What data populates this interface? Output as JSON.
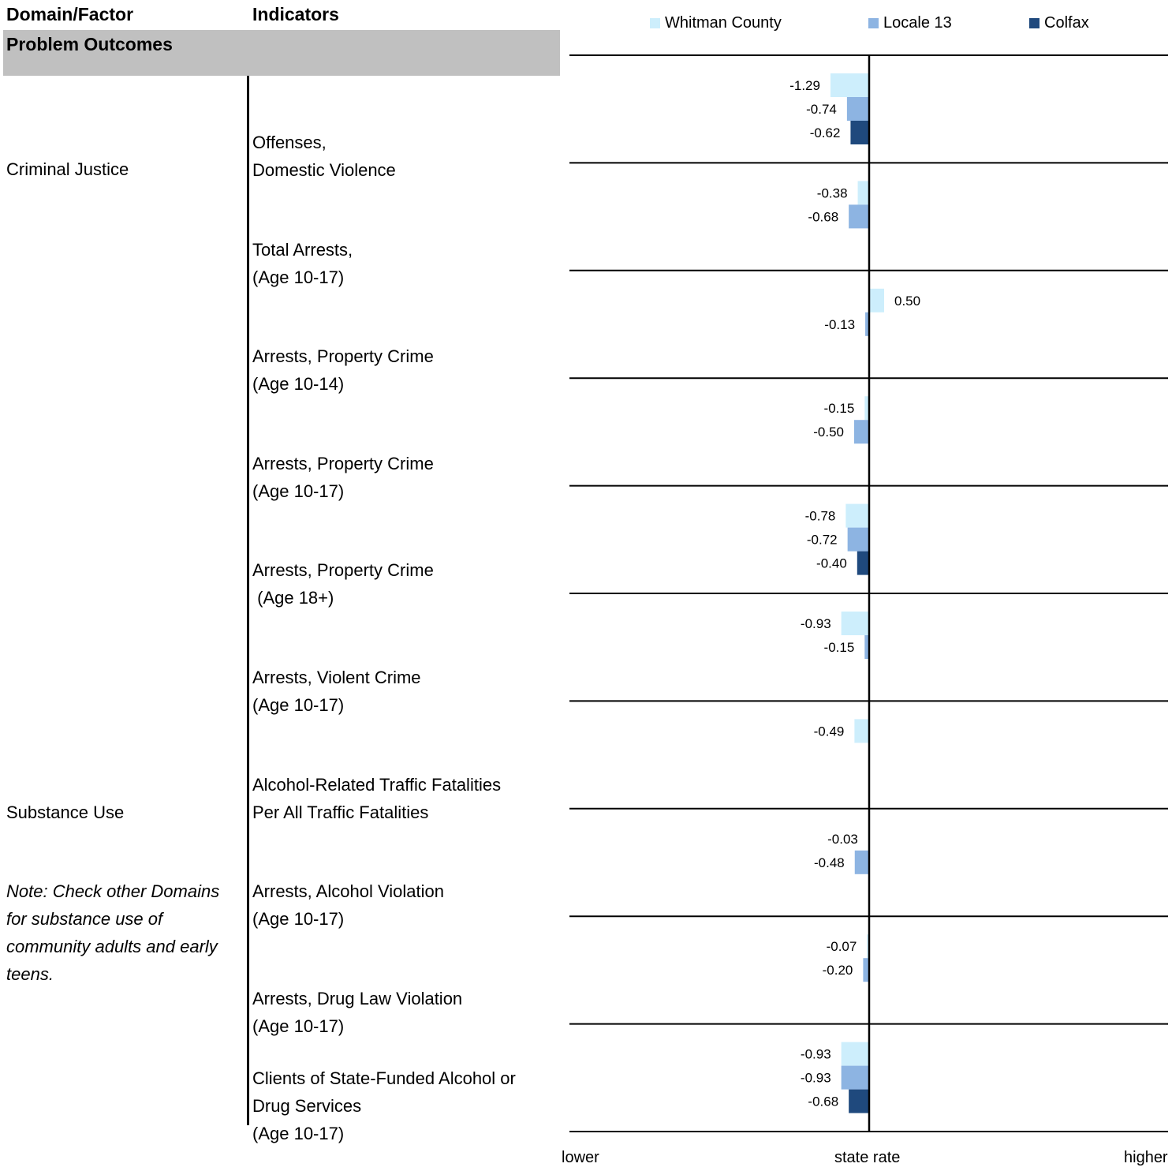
{
  "header": {
    "col1": "Domain/Factor",
    "col2": "Indicators",
    "section": "Problem Outcomes"
  },
  "domains": [
    {
      "name": "Criminal Justice"
    },
    {
      "name": "Substance Use"
    }
  ],
  "note": "Note: Check other Domains for substance use of community adults and early teens.",
  "indicators": [
    "Offenses,\nDomestic Violence",
    "Total Arrests,\n(Age 10-17)",
    "Arrests, Property Crime\n(Age 10-14)",
    "Arrests, Property Crime\n(Age 10-17)",
    "Arrests, Property Crime\n (Age 18+)",
    "Arrests, Violent Crime\n(Age 10-17)",
    "Alcohol-Related Traffic Fatalities\nPer All Traffic Fatalities",
    "Arrests, Alcohol Violation\n(Age 10-17)",
    "Arrests, Drug Law Violation\n(Age 10-17)",
    "Clients of State-Funded Alcohol or\nDrug Services\n(Age 10-17)"
  ],
  "chart_data": {
    "type": "bar",
    "orientation": "horizontal",
    "categories": [
      "Offenses, Domestic Violence",
      "Total Arrests, (Age 10-17)",
      "Arrests, Property Crime (Age 10-14)",
      "Arrests, Property Crime (Age 10-17)",
      "Arrests, Property Crime (Age 18+)",
      "Arrests, Violent Crime (Age 10-17)",
      "Alcohol-Related Traffic Fatalities Per All Traffic Fatalities",
      "Arrests, Alcohol Violation (Age 10-17)",
      "Arrests, Drug Law Violation (Age 10-17)",
      "Clients of State-Funded Alcohol or Drug Services (Age 10-17)"
    ],
    "series": [
      {
        "name": "Whitman County",
        "color": "#cdeefc",
        "values": [
          -1.29,
          -0.38,
          0.5,
          -0.15,
          -0.78,
          -0.93,
          -0.49,
          -0.03,
          -0.07,
          -0.93
        ]
      },
      {
        "name": "Locale 13",
        "color": "#8db4e2",
        "values": [
          -0.74,
          -0.68,
          -0.13,
          -0.5,
          -0.72,
          -0.15,
          null,
          -0.48,
          -0.2,
          -0.93
        ]
      },
      {
        "name": "Colfax",
        "color": "#1f497d",
        "values": [
          -0.62,
          null,
          null,
          null,
          -0.4,
          null,
          null,
          null,
          null,
          -0.68
        ]
      }
    ],
    "value_labels": [
      [
        "-1.29",
        "-0.74",
        "-0.62"
      ],
      [
        "-0.38",
        "-0.68",
        ""
      ],
      [
        "0.50",
        "-0.13",
        ""
      ],
      [
        "-0.15",
        "-0.50",
        ""
      ],
      [
        "-0.78",
        "-0.72",
        "-0.40"
      ],
      [
        "-0.93",
        "-0.15",
        ""
      ],
      [
        "-0.49",
        "",
        ""
      ],
      [
        "-0.03",
        "-0.48",
        ""
      ],
      [
        "-0.07",
        "-0.20",
        ""
      ],
      [
        "-0.93",
        "-0.93",
        "-0.68"
      ]
    ],
    "xlim": [
      -10,
      10
    ],
    "x_axis_labels": {
      "left": "lower",
      "center": "state rate",
      "right": "higher"
    },
    "legend_position": "top",
    "grid": "horizontal separators between indicators"
  }
}
